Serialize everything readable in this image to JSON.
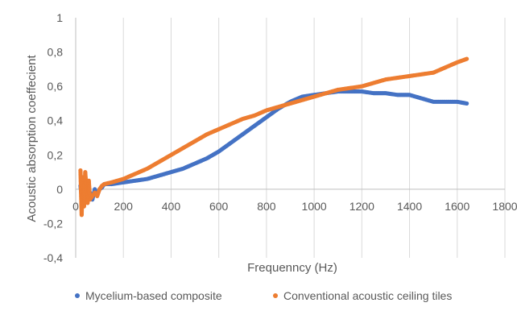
{
  "chart_data": {
    "type": "scatter",
    "title": "",
    "xlabel": "Frequenncy (Hz)",
    "ylabel": "Acoustic absorption coeffecient",
    "xlim": [
      0,
      1800
    ],
    "ylim": [
      -0.4,
      1
    ],
    "xticks": [
      0,
      200,
      400,
      600,
      800,
      1000,
      1200,
      1400,
      1600,
      1800
    ],
    "yticks": [
      -0.4,
      -0.2,
      0,
      0.2,
      0.4,
      0.6,
      0.8,
      1
    ],
    "xtick_labels": [
      "0",
      "200",
      "400",
      "600",
      "800",
      "1000",
      "1200",
      "1400",
      "1600",
      "1800"
    ],
    "ytick_labels": [
      "-0,4",
      "-0,2",
      "0",
      "0,2",
      "0,4",
      "0,6",
      "0,8",
      "1"
    ],
    "grid": "vertical",
    "legend_position": "bottom",
    "series": [
      {
        "name": "Mycelium-based composite",
        "color": "#4472C4",
        "points": [
          [
            20,
            0.02
          ],
          [
            30,
            -0.1
          ],
          [
            40,
            0.03
          ],
          [
            50,
            -0.05
          ],
          [
            60,
            -0.02
          ],
          [
            70,
            -0.06
          ],
          [
            80,
            0.0
          ],
          [
            90,
            -0.03
          ],
          [
            100,
            0.0
          ],
          [
            110,
            0.01
          ],
          [
            120,
            0.03
          ],
          [
            150,
            0.03
          ],
          [
            200,
            0.04
          ],
          [
            250,
            0.05
          ],
          [
            300,
            0.06
          ],
          [
            350,
            0.08
          ],
          [
            400,
            0.1
          ],
          [
            450,
            0.12
          ],
          [
            500,
            0.15
          ],
          [
            550,
            0.18
          ],
          [
            600,
            0.22
          ],
          [
            650,
            0.27
          ],
          [
            700,
            0.32
          ],
          [
            750,
            0.37
          ],
          [
            800,
            0.42
          ],
          [
            850,
            0.47
          ],
          [
            900,
            0.51
          ],
          [
            950,
            0.54
          ],
          [
            1000,
            0.55
          ],
          [
            1050,
            0.56
          ],
          [
            1100,
            0.57
          ],
          [
            1150,
            0.57
          ],
          [
            1200,
            0.57
          ],
          [
            1250,
            0.56
          ],
          [
            1300,
            0.56
          ],
          [
            1350,
            0.55
          ],
          [
            1400,
            0.55
          ],
          [
            1450,
            0.53
          ],
          [
            1500,
            0.51
          ],
          [
            1550,
            0.51
          ],
          [
            1600,
            0.51
          ],
          [
            1640,
            0.5
          ]
        ]
      },
      {
        "name": "Conventional acoustic ceiling tiles",
        "color": "#ED7D31",
        "points": [
          [
            20,
            0.11
          ],
          [
            25,
            -0.15
          ],
          [
            30,
            0.07
          ],
          [
            35,
            -0.1
          ],
          [
            40,
            0.1
          ],
          [
            45,
            0.0
          ],
          [
            50,
            -0.08
          ],
          [
            55,
            0.05
          ],
          [
            60,
            -0.06
          ],
          [
            70,
            -0.04
          ],
          [
            80,
            -0.02
          ],
          [
            90,
            -0.04
          ],
          [
            100,
            0.0
          ],
          [
            110,
            0.02
          ],
          [
            120,
            0.03
          ],
          [
            150,
            0.04
          ],
          [
            200,
            0.06
          ],
          [
            250,
            0.09
          ],
          [
            300,
            0.12
          ],
          [
            350,
            0.16
          ],
          [
            400,
            0.2
          ],
          [
            450,
            0.24
          ],
          [
            500,
            0.28
          ],
          [
            550,
            0.32
          ],
          [
            600,
            0.35
          ],
          [
            650,
            0.38
          ],
          [
            700,
            0.41
          ],
          [
            750,
            0.43
          ],
          [
            800,
            0.46
          ],
          [
            850,
            0.48
          ],
          [
            900,
            0.5
          ],
          [
            950,
            0.52
          ],
          [
            1000,
            0.54
          ],
          [
            1050,
            0.56
          ],
          [
            1100,
            0.58
          ],
          [
            1150,
            0.59
          ],
          [
            1200,
            0.6
          ],
          [
            1250,
            0.62
          ],
          [
            1300,
            0.64
          ],
          [
            1350,
            0.65
          ],
          [
            1400,
            0.66
          ],
          [
            1450,
            0.67
          ],
          [
            1500,
            0.68
          ],
          [
            1550,
            0.71
          ],
          [
            1600,
            0.74
          ],
          [
            1640,
            0.76
          ]
        ]
      }
    ]
  }
}
